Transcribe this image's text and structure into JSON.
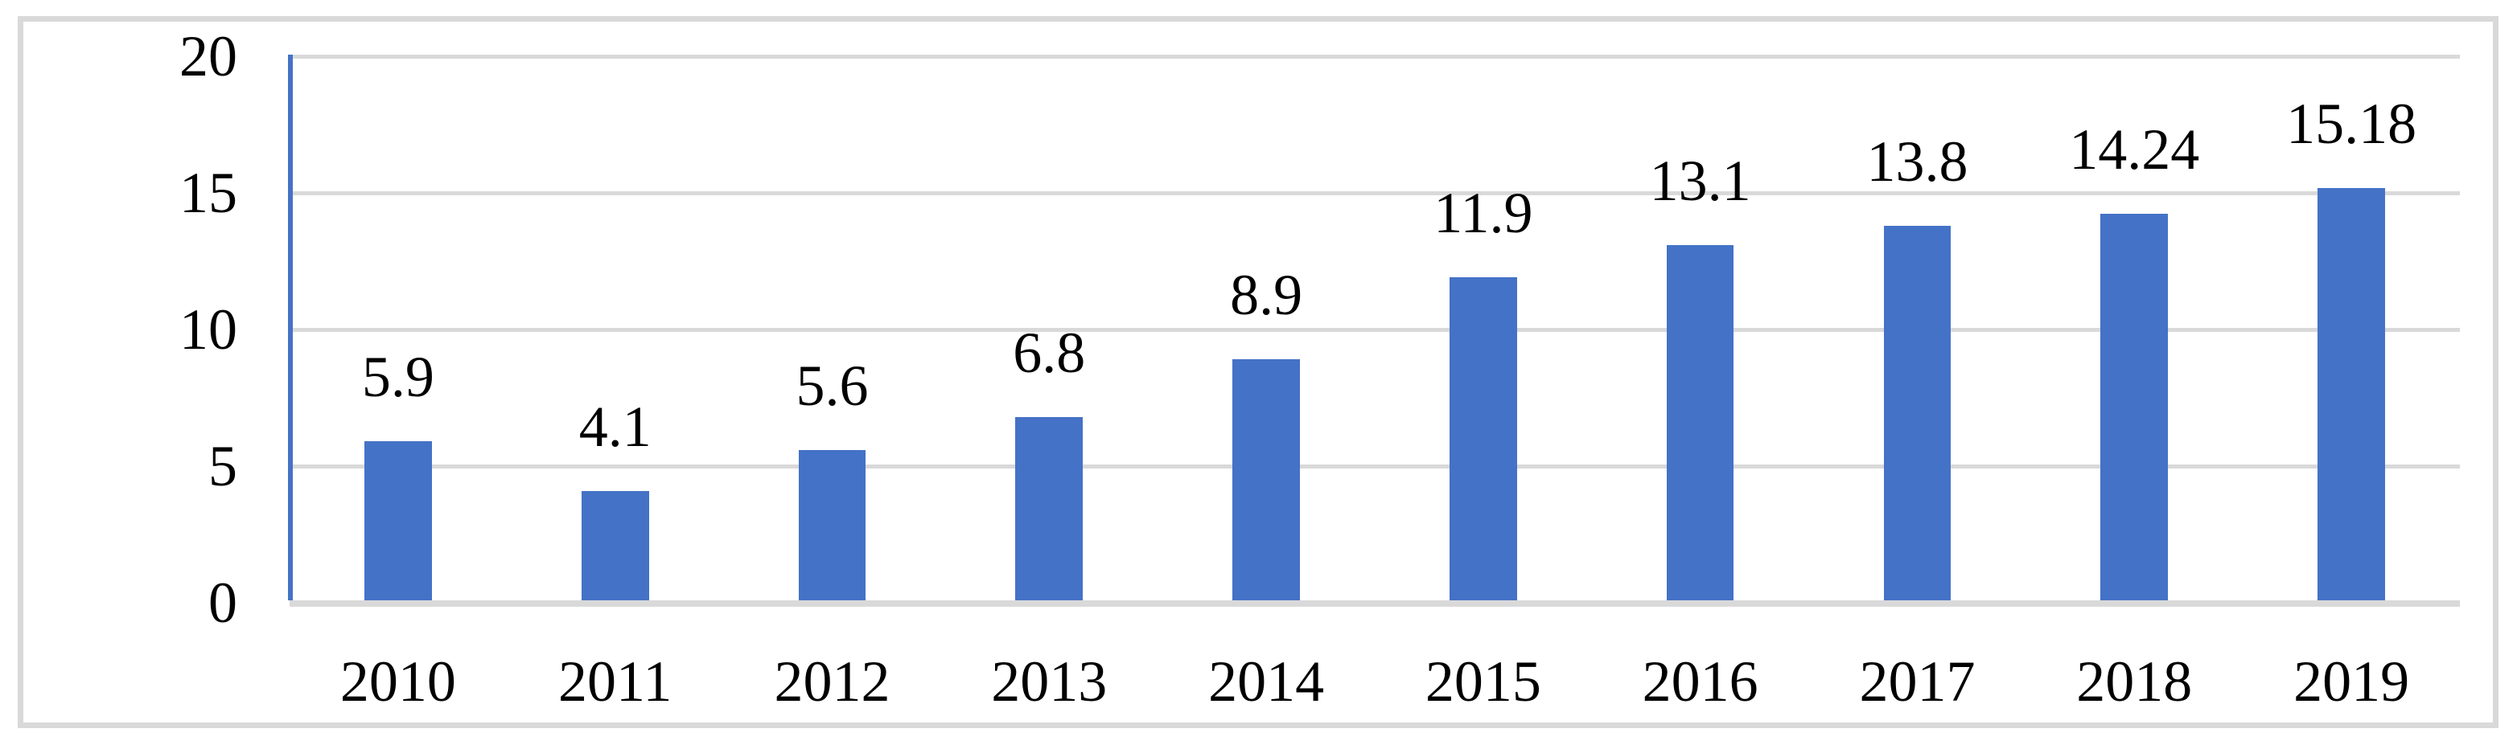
{
  "chart_data": {
    "type": "bar",
    "categories": [
      "2010",
      "2011",
      "2012",
      "2013",
      "2014",
      "2015",
      "2016",
      "2017",
      "2018",
      "2019"
    ],
    "values": [
      5.9,
      4.1,
      5.6,
      6.8,
      8.9,
      11.9,
      13.1,
      13.8,
      14.24,
      15.18
    ],
    "data_labels": [
      "5.9",
      "4.1",
      "5.6",
      "6.8",
      "8.9",
      "11.9",
      "13.1",
      "13.8",
      "14.24",
      "15.18"
    ],
    "title": "",
    "xlabel": "",
    "ylabel": "",
    "ylim": [
      0,
      20
    ],
    "yticks": [
      0,
      5,
      10,
      15,
      20
    ],
    "grid": true,
    "legend": "none",
    "colors": {
      "bar": "#4472C6",
      "axis_line": "#4472C6",
      "gridline": "#D9D9D9",
      "frame_border": "#D9D9D9",
      "text": "#000000",
      "background": "#FFFFFF"
    }
  }
}
